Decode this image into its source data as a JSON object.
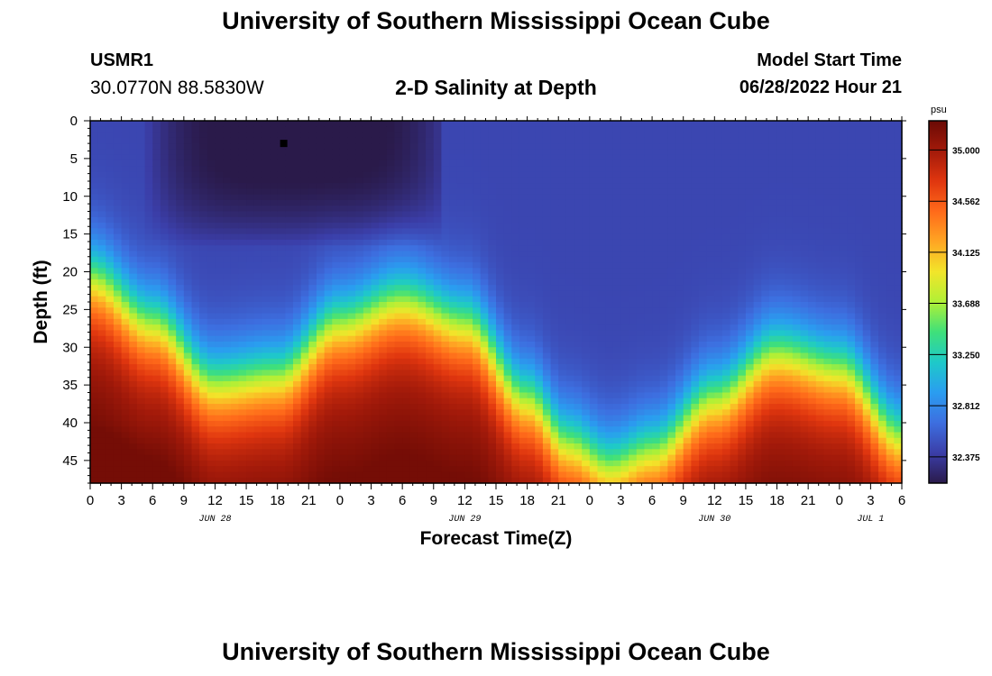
{
  "header": {
    "title": "University of Southern Mississippi Ocean Cube",
    "station_id": "USMR1",
    "coords": "30.0770N  88.5830W",
    "subtitle": "2-D Salinity at Depth",
    "start_label": "Model Start Time",
    "start_value": "06/28/2022 Hour 21"
  },
  "footer": {
    "title": "University of Southern Mississippi Ocean Cube"
  },
  "chart_data": {
    "type": "heatmap",
    "title": "2-D Salinity at Depth",
    "xlabel": "Forecast Time(Z)",
    "ylabel": "Depth (ft)",
    "x_range_hours": [
      0,
      78
    ],
    "x_ticks_hours": [
      0,
      3,
      6,
      9,
      12,
      15,
      18,
      21,
      24,
      27,
      30,
      33,
      36,
      39,
      42,
      45,
      48,
      51,
      54,
      57,
      60,
      63,
      66,
      69,
      72,
      75,
      78
    ],
    "x_tick_labels": [
      "0",
      "3",
      "6",
      "9",
      "12",
      "15",
      "18",
      "21",
      "0",
      "3",
      "6",
      "9",
      "12",
      "15",
      "18",
      "21",
      "0",
      "3",
      "6",
      "9",
      "12",
      "15",
      "18",
      "21",
      "0",
      "3",
      "6"
    ],
    "day_labels": [
      {
        "hour": 12,
        "text": "JUN 28"
      },
      {
        "hour": 36,
        "text": "JUN 29"
      },
      {
        "hour": 60,
        "text": "JUN 30"
      },
      {
        "hour": 75,
        "text": "JUL 1"
      }
    ],
    "ylim": [
      0,
      48
    ],
    "y_ticks": [
      0,
      5,
      10,
      15,
      20,
      25,
      30,
      35,
      40,
      45
    ],
    "colorbar": {
      "unit": "psu",
      "range": [
        32.15,
        35.25
      ],
      "ticks": [
        35.0,
        34.562,
        34.125,
        33.688,
        33.25,
        32.812,
        32.375
      ],
      "tick_labels": [
        "35.000",
        "34.562",
        "34.125",
        "33.688",
        "33.250",
        "32.812",
        "32.375"
      ],
      "colors": [
        "#2a1a4a",
        "#3b3ea8",
        "#3d6fe0",
        "#2a9df0",
        "#1ec9c9",
        "#3fe07a",
        "#b0f036",
        "#f2e52a",
        "#ffa523",
        "#ff6a1a",
        "#e0360f",
        "#a31a0a",
        "#6a0a05"
      ]
    },
    "surface_salinity": 32.45,
    "deep_salinity_max": 35.2,
    "halocline_depth_ft": [
      {
        "hour": 0,
        "depth": 21
      },
      {
        "hour": 6,
        "depth": 27
      },
      {
        "hour": 12,
        "depth": 35
      },
      {
        "hour": 18,
        "depth": 34
      },
      {
        "hour": 24,
        "depth": 27
      },
      {
        "hour": 30,
        "depth": 24
      },
      {
        "hour": 36,
        "depth": 27
      },
      {
        "hour": 42,
        "depth": 37
      },
      {
        "hour": 46,
        "depth": 43
      },
      {
        "hour": 50,
        "depth": 46
      },
      {
        "hour": 54,
        "depth": 44
      },
      {
        "hour": 60,
        "depth": 37
      },
      {
        "hour": 66,
        "depth": 31
      },
      {
        "hour": 72,
        "depth": 33
      },
      {
        "hour": 78,
        "depth": 42
      }
    ],
    "fresh_lens": {
      "hours": [
        8,
        32
      ],
      "depth_ft": [
        0,
        15
      ],
      "min_salinity": 32.15
    }
  }
}
